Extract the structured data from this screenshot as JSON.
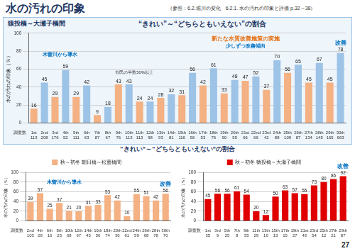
{
  "title": "水の汚れの印象",
  "reference": "（参照：6.2.堀川の変化　6.2.1. 水の汚れの印象と評価 p.32～38）",
  "page_number": "27",
  "bottom_title": "“きれい”～“どちらともいえない”の割合",
  "chart_data": [
    {
      "type": "bar",
      "section": "猿投橋～大瀬子橋間",
      "title": "“きれい”～“どちらともいえない”の割合",
      "y_label": "水の汚れの印象（％）",
      "categories": [
        "1st",
        "2nd",
        "3rd",
        "4th",
        "5th",
        "6th",
        "7th",
        "8th",
        "9th",
        "10th",
        "11th",
        "12th",
        "13th",
        "14th",
        "15th",
        "16th",
        "17th",
        "18th",
        "19th",
        "20th",
        "21st",
        "22nd",
        "23rd",
        "24th",
        "25th",
        "26th",
        "27th",
        "28th",
        "29th",
        "30th"
      ],
      "values": [
        16,
        45,
        29,
        59,
        29,
        42,
        9,
        18,
        43,
        43,
        24,
        24,
        28,
        32,
        31,
        56,
        42,
        61,
        33,
        48,
        47,
        52,
        37,
        70,
        56,
        65,
        45,
        67,
        45,
        78
      ],
      "colors": [
        "#f4b183",
        "#9dc3e6",
        "#f4b183",
        "#9dc3e6",
        "#f4b183",
        "#9dc3e6",
        "#f4b183",
        "#9dc3e6",
        "#f4b183",
        "#9dc3e6",
        "#f4b183",
        "#9dc3e6",
        "#f4b183",
        "#9dc3e6",
        "#f4b183",
        "#9dc3e6",
        "#f4b183",
        "#9dc3e6",
        "#f4b183",
        "#9dc3e6",
        "#f4b183",
        "#9dc3e6",
        "#f4b183",
        "#9dc3e6",
        "#f4b183",
        "#9dc3e6",
        "#f4b183",
        "#9dc3e6",
        "#f4b183",
        "#9dc3e6"
      ],
      "counts_label": "調査数",
      "counts": [
        113,
        208,
        176,
        52,
        111,
        63,
        87,
        67,
        76,
        113,
        113,
        98,
        93,
        81,
        116,
        56,
        53,
        76,
        90,
        55,
        66,
        66,
        42,
        88,
        109,
        87,
        134,
        145,
        165,
        663
      ],
      "ylim": [
        0,
        100
      ],
      "yticks": [
        0,
        20,
        40,
        60,
        80,
        100
      ],
      "grid": true,
      "data_labels": true,
      "annotations": [
        "木曽川から導水",
        "市民の半数50%以上",
        "新たな水質改善施策の実施",
        "少しずつ改善傾向",
        "改善"
      ]
    },
    {
      "type": "bar",
      "y_label": "水の汚れの印象（％）",
      "categories": [
        "2nd",
        "4th",
        "6th",
        "8th",
        "10th",
        "12th",
        "14th",
        "16th",
        "18th",
        "20th",
        "22nd",
        "24th",
        "26th",
        "28th",
        "30th"
      ],
      "series": [
        {
          "name": "秋～初冬 朝日橋～松重橋間",
          "color": "#f4b183",
          "values": [
            39,
            57,
            25,
            37,
            21,
            20,
            31,
            33,
            53,
            42,
            10,
            55,
            51,
            42,
            56
          ]
        }
      ],
      "counts_label": "調査数",
      "counts": [
        103,
        28,
        16,
        25,
        68,
        67,
        45,
        56,
        74,
        36,
        61,
        59,
        68,
        78,
        70
      ],
      "ylim": [
        0,
        100
      ],
      "yticks": [
        0,
        20,
        40,
        60,
        80,
        100
      ],
      "grid": true,
      "legend": "top",
      "data_labels": true,
      "annotations": [
        "木曽川から導水",
        "改善"
      ]
    },
    {
      "type": "bar",
      "y_label": "水の汚れの印象（％）",
      "categories": [
        "1st",
        "3rd",
        "5th",
        "7th",
        "9th",
        "11th",
        "13th",
        "15th",
        "17th",
        "19th",
        "21st",
        "23rd",
        "25th",
        "27th",
        "29th"
      ],
      "series": [
        {
          "name": "秋～初冬 猿投橋～大瀬子橋間",
          "color": "#e00000",
          "values": [
            45,
            56,
            56,
            61,
            54,
            20,
            12,
            50,
            63,
            57,
            55,
            73,
            80,
            86,
            92
          ]
        }
      ],
      "counts_label": "調査数",
      "counts": [
        35,
        9,
        25,
        8,
        55,
        29,
        16,
        13,
        15,
        27,
        43,
        54,
        12,
        21,
        87
      ],
      "ylim": [
        0,
        100
      ],
      "yticks": [
        0,
        20,
        40,
        60,
        80,
        100
      ],
      "grid": true,
      "legend": "top",
      "data_labels": true,
      "annotations": [
        "改善"
      ]
    }
  ]
}
